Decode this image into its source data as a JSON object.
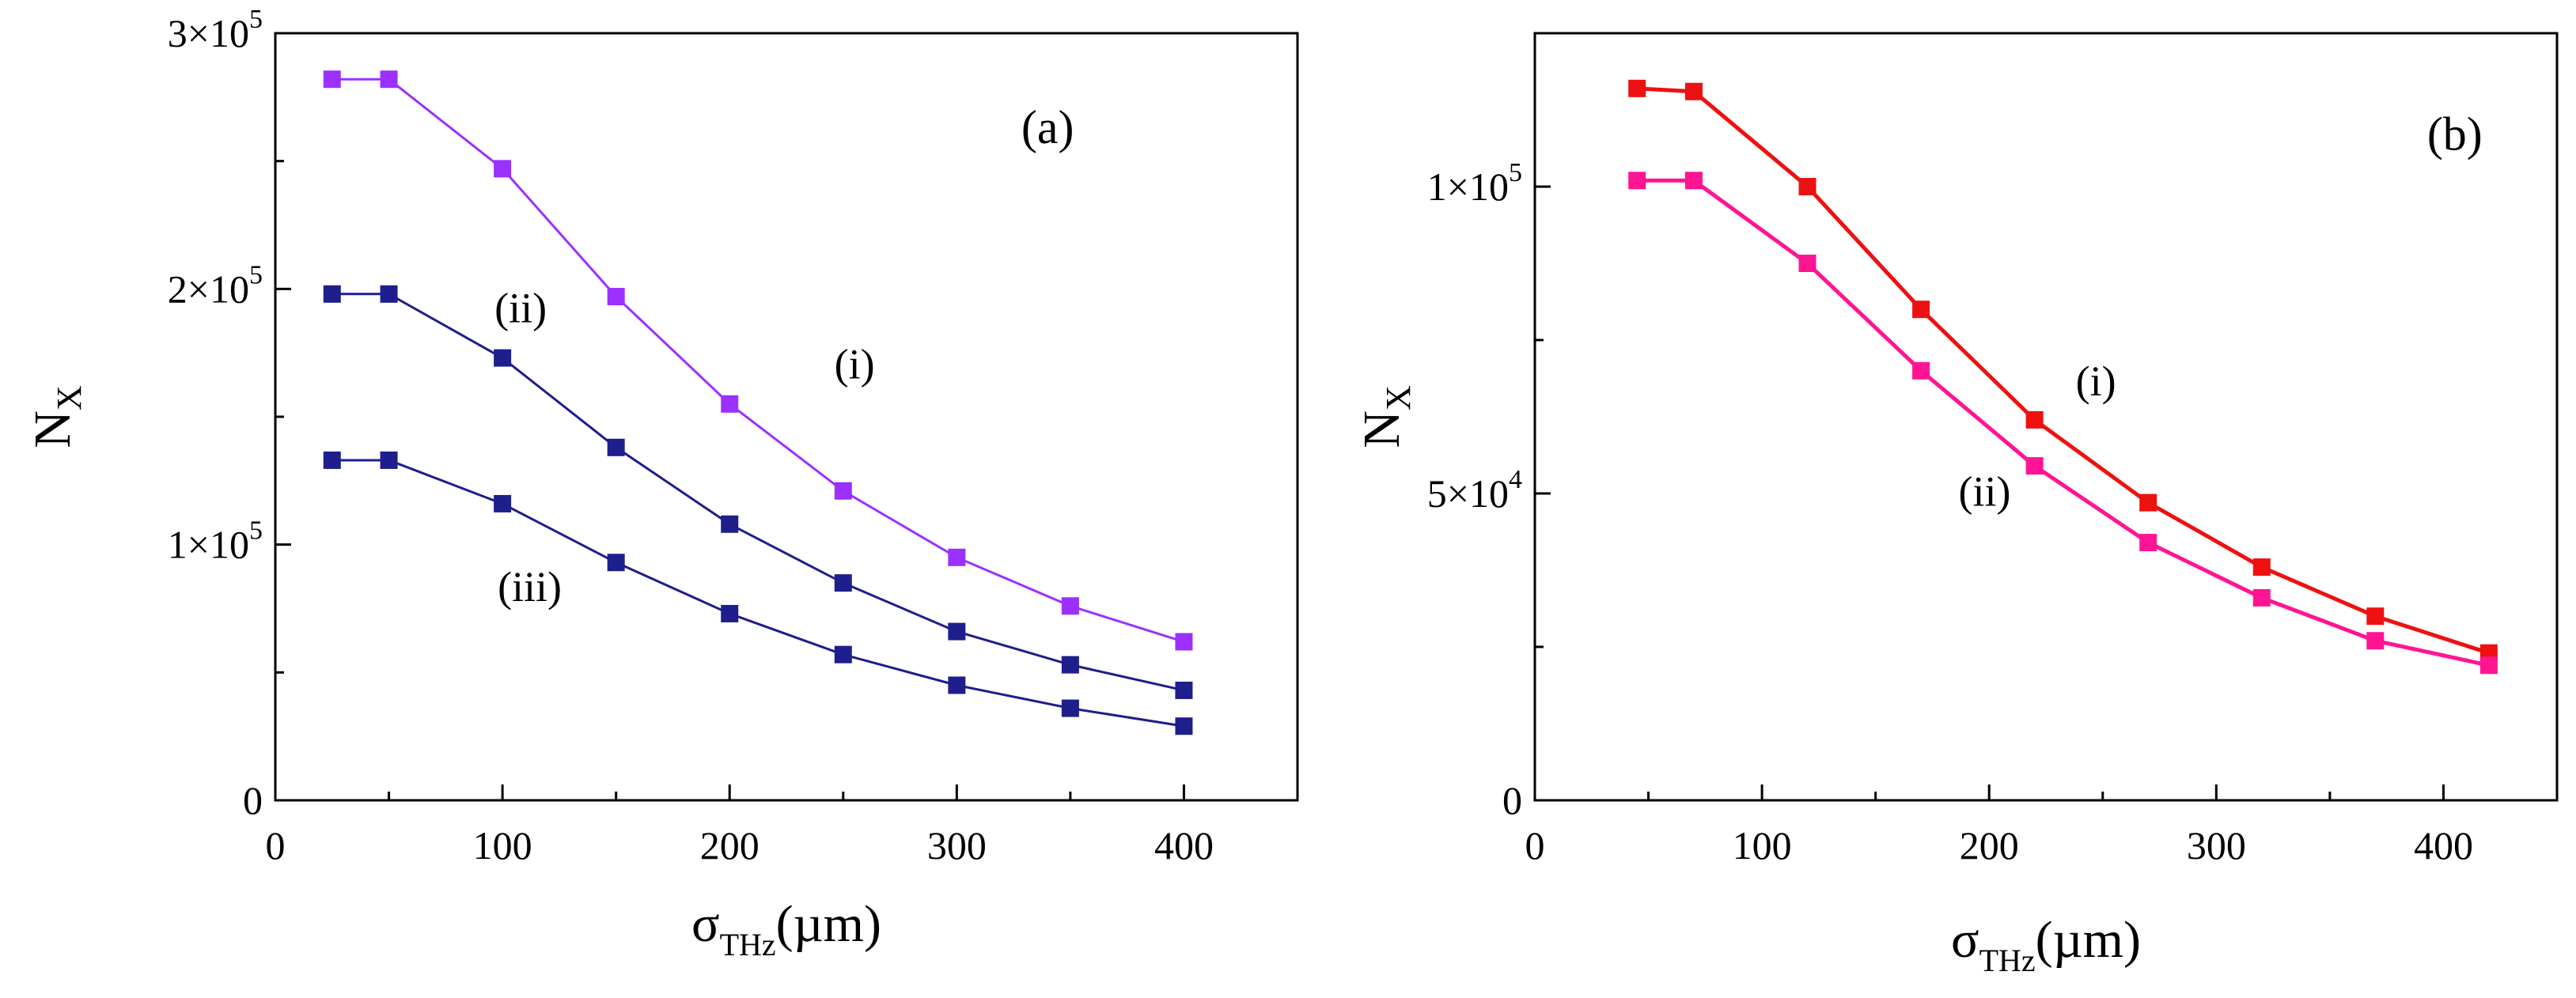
{
  "chart_data": [
    {
      "type": "line",
      "panel_label": "(a)",
      "xlabel": {
        "symbol": "σ",
        "subscript": "THz",
        "unit": "(µm)"
      },
      "ylabel": {
        "symbol": "N",
        "subscript": "X"
      },
      "xlim": [
        0,
        450
      ],
      "ylim": [
        0,
        300000
      ],
      "x_ticks": [
        {
          "value": 0,
          "label": "0"
        },
        {
          "value": 100,
          "label": "100"
        },
        {
          "value": 200,
          "label": "200"
        },
        {
          "value": 300,
          "label": "300"
        },
        {
          "value": 400,
          "label": "400"
        }
      ],
      "y_ticks": [
        {
          "value": 0,
          "mant": "0",
          "exp": ""
        },
        {
          "value": 100000,
          "mant": "1×10",
          "exp": "5"
        },
        {
          "value": 200000,
          "mant": "2×10",
          "exp": "5"
        },
        {
          "value": 300000,
          "mant": "3×10",
          "exp": "5"
        }
      ],
      "x": [
        25,
        50,
        100,
        150,
        200,
        250,
        300,
        350,
        400
      ],
      "series": [
        {
          "name": "(i)",
          "color": "#9b30ff",
          "values": [
            282000,
            282000,
            247000,
            197000,
            155000,
            121000,
            95000,
            76000,
            62000
          ]
        },
        {
          "name": "(ii)",
          "color": "#1e1e8c",
          "values": [
            198000,
            198000,
            173000,
            138000,
            108000,
            85000,
            66000,
            53000,
            43000
          ]
        },
        {
          "name": "(iii)",
          "color": "#1e1e8c",
          "values": [
            133000,
            133000,
            116000,
            93000,
            73000,
            57000,
            45000,
            36000,
            29000
          ]
        }
      ],
      "curve_labels": [
        {
          "text": "(i)",
          "x": 255,
          "y": 165000
        },
        {
          "text": "(ii)",
          "x": 108,
          "y": 187000
        },
        {
          "text": "(iii)",
          "x": 112,
          "y": 78000
        }
      ],
      "panel_label_pos": {
        "x": 340,
        "y": 257000
      }
    },
    {
      "type": "line",
      "panel_label": "(b)",
      "xlabel": {
        "symbol": "σ",
        "subscript": "THz",
        "unit": "(µm)"
      },
      "ylabel": {
        "symbol": "N",
        "subscript": "X"
      },
      "xlim": [
        0,
        450
      ],
      "ylim": [
        0,
        125000
      ],
      "x_ticks": [
        {
          "value": 0,
          "label": "0"
        },
        {
          "value": 100,
          "label": "100"
        },
        {
          "value": 200,
          "label": "200"
        },
        {
          "value": 300,
          "label": "300"
        },
        {
          "value": 400,
          "label": "400"
        }
      ],
      "y_ticks": [
        {
          "value": 0,
          "mant": "0",
          "exp": ""
        },
        {
          "value": 50000,
          "mant": "5×10",
          "exp": "4"
        },
        {
          "value": 100000,
          "mant": "1×10",
          "exp": "5"
        }
      ],
      "x": [
        45,
        70,
        120,
        170,
        220,
        270,
        320,
        370,
        420
      ],
      "series": [
        {
          "name": "(i)",
          "color": "#ee1111",
          "values": [
            116000,
            115500,
            100000,
            80000,
            62000,
            48500,
            38000,
            30000,
            24000
          ]
        },
        {
          "name": "(ii)",
          "color": "#ff1493",
          "values": [
            101000,
            101000,
            87500,
            70000,
            54500,
            42000,
            33000,
            26000,
            22000
          ]
        }
      ],
      "curve_labels": [
        {
          "text": "(i)",
          "x": 247,
          "y": 66000
        },
        {
          "text": "(ii)",
          "x": 198,
          "y": 48000
        }
      ],
      "panel_label_pos": {
        "x": 405,
        "y": 106000
      }
    }
  ]
}
